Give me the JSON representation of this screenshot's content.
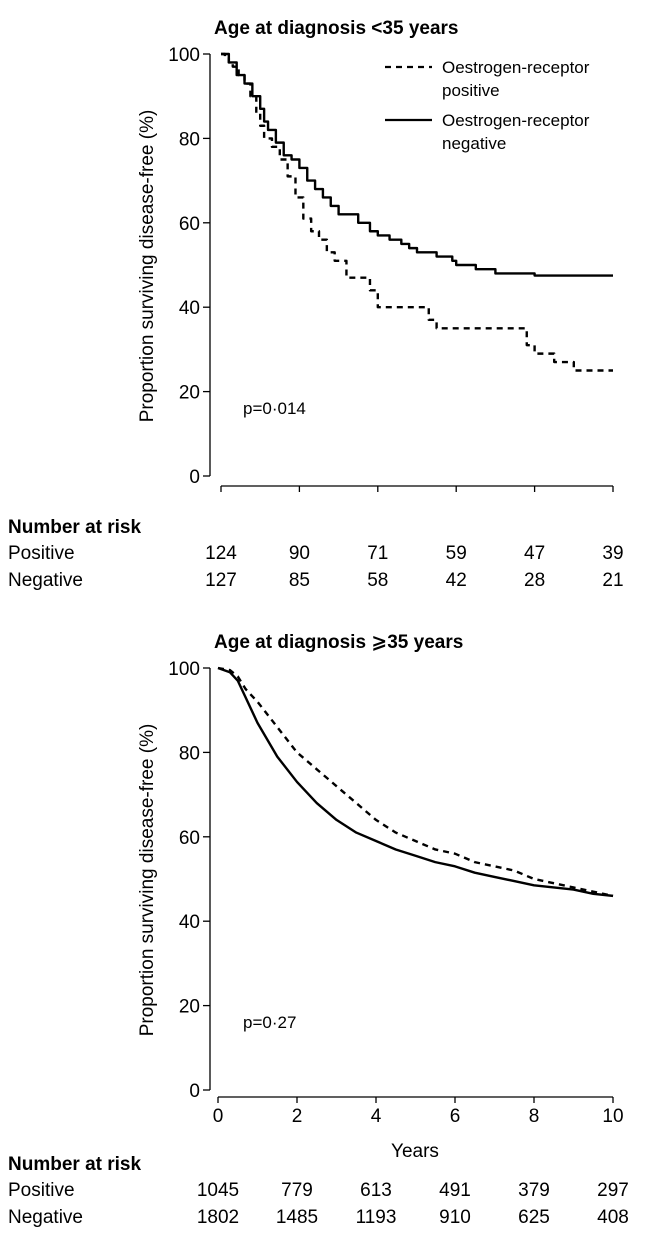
{
  "chart_data": [
    {
      "type": "line",
      "title": "Age at diagnosis <35 years",
      "xlabel": "",
      "ylabel": "Proportion surviving disease-free (%)",
      "xlim": [
        0,
        10
      ],
      "ylim": [
        0,
        100
      ],
      "yticks": [
        "0",
        "20",
        "40",
        "60",
        "80",
        "100"
      ],
      "xticks": [],
      "grid": false,
      "legend_position": "top-right",
      "annotation": "p=0·014",
      "series": [
        {
          "name": "Oestrogen-receptor positive",
          "style": "dashed",
          "points": [
            [
              0,
              100
            ],
            [
              0.1,
              99
            ],
            [
              0.2,
              98
            ],
            [
              0.3,
              97
            ],
            [
              0.45,
              95
            ],
            [
              0.6,
              93
            ],
            [
              0.75,
              90
            ],
            [
              0.9,
              86
            ],
            [
              1.0,
              83
            ],
            [
              1.1,
              80
            ],
            [
              1.3,
              78
            ],
            [
              1.5,
              75
            ],
            [
              1.7,
              71
            ],
            [
              1.9,
              66
            ],
            [
              2.1,
              61
            ],
            [
              2.3,
              58
            ],
            [
              2.5,
              56
            ],
            [
              2.7,
              53
            ],
            [
              2.9,
              51
            ],
            [
              3.2,
              47
            ],
            [
              3.6,
              47
            ],
            [
              3.8,
              44
            ],
            [
              4.0,
              40
            ],
            [
              4.5,
              40
            ],
            [
              5.0,
              40
            ],
            [
              5.3,
              37
            ],
            [
              5.5,
              35
            ],
            [
              6.0,
              35
            ],
            [
              7.5,
              35
            ],
            [
              7.8,
              31
            ],
            [
              8.0,
              29
            ],
            [
              8.5,
              27
            ],
            [
              9.0,
              25
            ],
            [
              10,
              25
            ]
          ]
        },
        {
          "name": "Oestrogen-receptor negative",
          "style": "solid",
          "points": [
            [
              0,
              100
            ],
            [
              0.2,
              98
            ],
            [
              0.4,
              95
            ],
            [
              0.6,
              93
            ],
            [
              0.8,
              90
            ],
            [
              1.0,
              87
            ],
            [
              1.1,
              84
            ],
            [
              1.2,
              82
            ],
            [
              1.4,
              79
            ],
            [
              1.6,
              76
            ],
            [
              1.8,
              75
            ],
            [
              2.0,
              73
            ],
            [
              2.2,
              70
            ],
            [
              2.4,
              68
            ],
            [
              2.6,
              66
            ],
            [
              2.8,
              64
            ],
            [
              3.0,
              62
            ],
            [
              3.5,
              60
            ],
            [
              3.8,
              58
            ],
            [
              4.0,
              57
            ],
            [
              4.3,
              56
            ],
            [
              4.6,
              55
            ],
            [
              4.8,
              54
            ],
            [
              5.0,
              53
            ],
            [
              5.5,
              52
            ],
            [
              5.9,
              51
            ],
            [
              6.0,
              50
            ],
            [
              6.5,
              49
            ],
            [
              7.0,
              48
            ],
            [
              7.5,
              48
            ],
            [
              8.0,
              47.5
            ],
            [
              10,
              47.5
            ]
          ]
        }
      ],
      "number_at_risk": {
        "heading": "Number at risk",
        "rows": [
          {
            "label": "Positive",
            "values": [
              "124",
              "90",
              "71",
              "59",
              "47",
              "39"
            ]
          },
          {
            "label": "Negative",
            "values": [
              "127",
              "85",
              "58",
              "42",
              "28",
              "21"
            ]
          }
        ]
      }
    },
    {
      "type": "line",
      "title": "Age at diagnosis ⩾35 years",
      "xlabel": "Years",
      "ylabel": "Proportion surviving disease-free (%)",
      "xlim": [
        0,
        10
      ],
      "ylim": [
        0,
        100
      ],
      "yticks": [
        "0",
        "20",
        "40",
        "60",
        "80",
        "100"
      ],
      "xticks": [
        "0",
        "2",
        "4",
        "6",
        "8",
        "10"
      ],
      "grid": false,
      "annotation": "p=0·27",
      "series": [
        {
          "name": "Oestrogen-receptor positive",
          "style": "dashed",
          "points": [
            [
              0,
              100
            ],
            [
              0.3,
              99.5
            ],
            [
              0.5,
              98
            ],
            [
              0.7,
              95
            ],
            [
              1.0,
              92
            ],
            [
              1.5,
              86
            ],
            [
              2.0,
              80
            ],
            [
              2.5,
              76
            ],
            [
              3.0,
              72
            ],
            [
              3.5,
              68
            ],
            [
              4.0,
              64
            ],
            [
              4.5,
              61
            ],
            [
              5.0,
              59
            ],
            [
              5.5,
              57
            ],
            [
              6.0,
              56
            ],
            [
              6.5,
              54
            ],
            [
              7.0,
              53
            ],
            [
              7.5,
              52
            ],
            [
              8.0,
              50
            ],
            [
              8.5,
              49
            ],
            [
              9.0,
              48
            ],
            [
              9.5,
              47
            ],
            [
              10,
              46
            ]
          ]
        },
        {
          "name": "Oestrogen-receptor negative",
          "style": "solid",
          "points": [
            [
              0,
              100
            ],
            [
              0.3,
              99
            ],
            [
              0.5,
              97
            ],
            [
              0.7,
              93
            ],
            [
              1.0,
              87
            ],
            [
              1.5,
              79
            ],
            [
              2.0,
              73
            ],
            [
              2.5,
              68
            ],
            [
              3.0,
              64
            ],
            [
              3.5,
              61
            ],
            [
              4.0,
              59
            ],
            [
              4.5,
              57
            ],
            [
              5.0,
              55.5
            ],
            [
              5.5,
              54
            ],
            [
              6.0,
              53
            ],
            [
              6.5,
              51.5
            ],
            [
              7.0,
              50.5
            ],
            [
              7.5,
              49.5
            ],
            [
              8.0,
              48.5
            ],
            [
              8.5,
              48
            ],
            [
              9.0,
              47.5
            ],
            [
              9.5,
              46.5
            ],
            [
              10,
              46
            ]
          ]
        }
      ],
      "number_at_risk": {
        "heading": "Number at risk",
        "rows": [
          {
            "label": "Positive",
            "values": [
              "1045",
              "779",
              "613",
              "491",
              "379",
              "297"
            ]
          },
          {
            "label": "Negative",
            "values": [
              "1802",
              "1485",
              "1193",
              "910",
              "625",
              "408"
            ]
          }
        ]
      }
    }
  ]
}
